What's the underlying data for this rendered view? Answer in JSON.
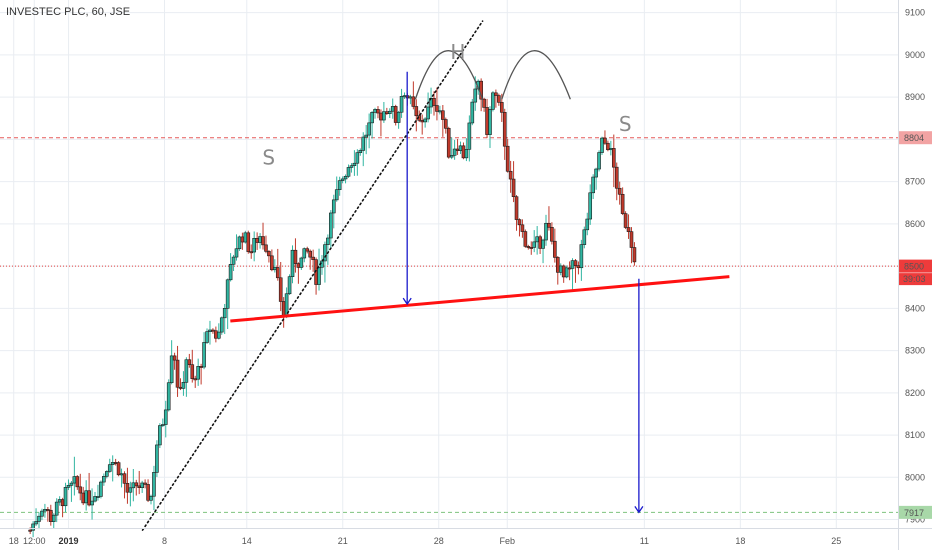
{
  "chart_data": {
    "type": "candlestick",
    "title": "INVESTEC PLC, 60, JSE",
    "y_ticks": [
      7900,
      8000,
      8100,
      8200,
      8300,
      8400,
      8500,
      8600,
      8700,
      8800,
      8900,
      9000,
      9100
    ],
    "ylim": [
      7880,
      9130
    ],
    "x_ticks": [
      {
        "label": "18",
        "day": -14,
        "bold": false
      },
      {
        "label": "12:00",
        "day": -12.5,
        "bold": false
      },
      {
        "label": "2019",
        "day": -10,
        "bold": true
      },
      {
        "label": "8",
        "day": -3,
        "bold": false
      },
      {
        "label": "14",
        "day": 3,
        "bold": false
      },
      {
        "label": "21",
        "day": 10,
        "bold": false
      },
      {
        "label": "28",
        "day": 17,
        "bold": false
      },
      {
        "label": "Feb",
        "day": 22,
        "bold": false
      },
      {
        "label": "11",
        "day": 32,
        "bold": false
      },
      {
        "label": "18",
        "day": 39,
        "bold": false
      },
      {
        "label": "25",
        "day": 46,
        "bold": false
      }
    ],
    "xlim": [
      -15,
      50.5
    ],
    "price_path": [
      [
        -12.8,
        7875
      ],
      [
        -11.9,
        7935
      ],
      [
        -11.3,
        7905
      ],
      [
        -10.2,
        7960
      ],
      [
        -9.6,
        7985
      ],
      [
        -8.6,
        7945
      ],
      [
        -7.8,
        7975
      ],
      [
        -7.0,
        8045
      ],
      [
        -6.3,
        8020
      ],
      [
        -5.6,
        7955
      ],
      [
        -5.0,
        7985
      ],
      [
        -4.0,
        7950
      ],
      [
        -3.6,
        8075
      ],
      [
        -3.0,
        8150
      ],
      [
        -2.4,
        8325
      ],
      [
        -1.9,
        8180
      ],
      [
        -1.4,
        8285
      ],
      [
        -0.9,
        8215
      ],
      [
        -0.3,
        8280
      ],
      [
        0.3,
        8355
      ],
      [
        0.9,
        8330
      ],
      [
        1.5,
        8435
      ],
      [
        2.1,
        8540
      ],
      [
        2.7,
        8575
      ],
      [
        3.3,
        8535
      ],
      [
        3.9,
        8575
      ],
      [
        4.5,
        8545
      ],
      [
        5.1,
        8480
      ],
      [
        5.7,
        8385
      ],
      [
        6.3,
        8520
      ],
      [
        6.9,
        8510
      ],
      [
        7.5,
        8535
      ],
      [
        8.1,
        8470
      ],
      [
        8.7,
        8555
      ],
      [
        9.3,
        8640
      ],
      [
        9.9,
        8705
      ],
      [
        10.5,
        8745
      ],
      [
        11.1,
        8770
      ],
      [
        11.7,
        8815
      ],
      [
        12.2,
        8850
      ],
      [
        12.8,
        8860
      ],
      [
        13.4,
        8880
      ],
      [
        13.9,
        8845
      ],
      [
        14.4,
        8925
      ],
      [
        15.0,
        8880
      ],
      [
        15.5,
        8835
      ],
      [
        16.1,
        8860
      ],
      [
        16.6,
        8895
      ],
      [
        17.2,
        8865
      ],
      [
        17.8,
        8760
      ],
      [
        18.3,
        8795
      ],
      [
        18.9,
        8760
      ],
      [
        19.4,
        8865
      ],
      [
        19.9,
        8940
      ],
      [
        20.5,
        8820
      ],
      [
        21.0,
        8915
      ],
      [
        21.6,
        8850
      ],
      [
        22.1,
        8720
      ],
      [
        22.7,
        8605
      ],
      [
        23.2,
        8570
      ],
      [
        23.8,
        8535
      ],
      [
        24.4,
        8560
      ],
      [
        24.9,
        8600
      ],
      [
        25.5,
        8515
      ],
      [
        26.1,
        8470
      ],
      [
        26.6,
        8490
      ],
      [
        27.2,
        8510
      ],
      [
        27.7,
        8590
      ],
      [
        28.3,
        8705
      ],
      [
        28.9,
        8790
      ],
      [
        29.4,
        8790
      ],
      [
        29.9,
        8710
      ],
      [
        30.4,
        8615
      ],
      [
        30.9,
        8590
      ],
      [
        31.3,
        8510
      ]
    ],
    "annotations": {
      "pattern_labels": [
        {
          "text": "S",
          "day": 4.6,
          "price": 8740
        },
        {
          "text": "H",
          "day": 18.4,
          "price": 8990
        },
        {
          "text": "S",
          "day": 30.6,
          "price": 8820
        }
      ],
      "head_arcs": [
        {
          "from_day": 15.3,
          "from_price": 8895,
          "peak_day": 17.7,
          "peak_price": 9010,
          "to_day": 20.2,
          "to_price": 8895
        },
        {
          "from_day": 21.6,
          "from_price": 8895,
          "peak_day": 24.0,
          "peak_price": 9010,
          "to_day": 26.6,
          "to_price": 8895
        }
      ],
      "neckline": {
        "from_day": 1.8,
        "from_price": 8370,
        "to_day": 38.2,
        "to_price": 8475,
        "color": "#ff1111"
      },
      "trendline": {
        "from_day": -4.6,
        "from_price": 7875,
        "to_day": 20.2,
        "to_price": 9080
      },
      "measure_arrows": [
        {
          "day": 14.7,
          "from_price": 8960,
          "to_price": 8410
        },
        {
          "day": 31.6,
          "from_price": 8470,
          "to_price": 7917
        }
      ],
      "hlines": [
        {
          "price": 8804,
          "label": "8804",
          "style": "dashed",
          "color": "#e65a5a",
          "label_bg": "#f2a3a3"
        },
        {
          "price": 8500,
          "label": "8500",
          "style": "dotted",
          "color": "#e04040",
          "label_bg": "#ee3b3b"
        },
        {
          "price": 7917,
          "label": "7917",
          "style": "dashed",
          "color": "#7ec27e",
          "label_bg": "#a8d8a8"
        }
      ],
      "countdown": "39:03"
    },
    "colors": {
      "up": "#30b5a1",
      "down": "#c0392b",
      "outline": "#1a1a1a",
      "arrow": "#1a1acc"
    }
  }
}
